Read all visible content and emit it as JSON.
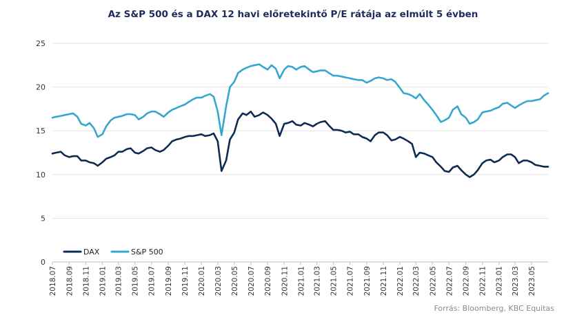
{
  "chart_data": {
    "type": "line",
    "title": "Az S&P 500 és a DAX 12 havi előretekintő P/E rátája az elmúlt  5 évben",
    "source": "Forrás: Bloomberg, KBC Equitas",
    "xlabel": "",
    "ylabel": "",
    "ylim": [
      0,
      25
    ],
    "yticks": [
      "0",
      "5",
      "10",
      "15",
      "20",
      "25"
    ],
    "xticks": [
      "2018.07",
      "2018.09",
      "2018.11",
      "2019.01",
      "2019.03",
      "2019.05",
      "2019.07",
      "2019.09",
      "2019.11",
      "2020.01",
      "2020.03",
      "2020.05",
      "2020.07",
      "2020.09",
      "2020.11",
      "2021.01",
      "2021.03",
      "2021.05",
      "2021.07",
      "2021.09",
      "2021.11",
      "2022.01",
      "2022.03",
      "2022.05",
      "2022.07",
      "2022.09",
      "2022.11",
      "2023.01",
      "2023.03",
      "2023.05"
    ],
    "grid": "horizontal",
    "legend": "bottom-left",
    "colors": {
      "DAX": "#0d2b4e",
      "S&P 500": "#35a6cf"
    },
    "x": [
      "2018-07-01",
      "2018-07-15",
      "2018-08-01",
      "2018-08-15",
      "2018-09-01",
      "2018-09-15",
      "2018-10-01",
      "2018-10-15",
      "2018-11-01",
      "2018-11-15",
      "2018-12-01",
      "2018-12-15",
      "2019-01-01",
      "2019-01-15",
      "2019-02-01",
      "2019-02-15",
      "2019-03-01",
      "2019-03-15",
      "2019-04-01",
      "2019-04-15",
      "2019-05-01",
      "2019-05-15",
      "2019-06-01",
      "2019-06-15",
      "2019-07-01",
      "2019-07-15",
      "2019-08-01",
      "2019-08-15",
      "2019-09-01",
      "2019-09-15",
      "2019-10-01",
      "2019-10-15",
      "2019-11-01",
      "2019-11-15",
      "2019-12-01",
      "2019-12-15",
      "2020-01-01",
      "2020-01-15",
      "2020-02-01",
      "2020-02-15",
      "2020-03-01",
      "2020-03-15",
      "2020-04-01",
      "2020-04-15",
      "2020-05-01",
      "2020-05-15",
      "2020-06-01",
      "2020-06-15",
      "2020-07-01",
      "2020-07-15",
      "2020-08-01",
      "2020-08-15",
      "2020-09-01",
      "2020-09-15",
      "2020-10-01",
      "2020-10-15",
      "2020-11-01",
      "2020-11-15",
      "2020-12-01",
      "2020-12-15",
      "2021-01-01",
      "2021-01-15",
      "2021-02-01",
      "2021-02-15",
      "2021-03-01",
      "2021-03-15",
      "2021-04-01",
      "2021-04-15",
      "2021-05-01",
      "2021-05-15",
      "2021-06-01",
      "2021-06-15",
      "2021-07-01",
      "2021-07-15",
      "2021-08-01",
      "2021-08-15",
      "2021-09-01",
      "2021-09-15",
      "2021-10-01",
      "2021-10-15",
      "2021-11-01",
      "2021-11-15",
      "2021-12-01",
      "2021-12-15",
      "2022-01-01",
      "2022-01-15",
      "2022-02-01",
      "2022-02-15",
      "2022-03-01",
      "2022-03-15",
      "2022-04-01",
      "2022-04-15",
      "2022-05-01",
      "2022-05-15",
      "2022-06-01",
      "2022-06-15",
      "2022-07-01",
      "2022-07-15",
      "2022-08-01",
      "2022-08-15",
      "2022-09-01",
      "2022-09-15",
      "2022-10-01",
      "2022-10-15",
      "2022-11-01",
      "2022-11-15",
      "2022-12-01",
      "2022-12-15",
      "2023-01-01",
      "2023-01-15",
      "2023-02-01",
      "2023-02-15",
      "2023-03-01",
      "2023-03-15",
      "2023-04-01",
      "2023-04-15",
      "2023-05-01",
      "2023-05-15",
      "2023-06-01",
      "2023-06-15",
      "2023-07-01"
    ],
    "series": [
      {
        "name": "DAX",
        "values": [
          12.4,
          12.5,
          12.6,
          12.2,
          12.0,
          12.1,
          12.1,
          11.6,
          11.6,
          11.4,
          11.3,
          11.0,
          11.4,
          11.8,
          12.0,
          12.2,
          12.6,
          12.6,
          12.9,
          13.0,
          12.5,
          12.4,
          12.7,
          13.0,
          13.1,
          12.8,
          12.6,
          12.8,
          13.3,
          13.8,
          14.0,
          14.1,
          14.3,
          14.4,
          14.4,
          14.5,
          14.6,
          14.4,
          14.5,
          14.7,
          13.8,
          10.4,
          11.6,
          14.0,
          14.8,
          16.3,
          17.0,
          16.8,
          17.2,
          16.6,
          16.8,
          17.1,
          16.8,
          16.4,
          15.8,
          14.4,
          15.8,
          15.9,
          16.1,
          15.7,
          15.6,
          15.9,
          15.7,
          15.5,
          15.8,
          16.0,
          16.1,
          15.6,
          15.1,
          15.1,
          15.0,
          14.8,
          14.9,
          14.6,
          14.6,
          14.3,
          14.1,
          13.8,
          14.5,
          14.8,
          14.8,
          14.5,
          13.9,
          14.0,
          14.3,
          14.1,
          13.8,
          13.5,
          12.0,
          12.5,
          12.4,
          12.2,
          12.0,
          11.4,
          10.9,
          10.4,
          10.3,
          10.8,
          11.0,
          10.5,
          10.0,
          9.7,
          10.0,
          10.5,
          11.3,
          11.6,
          11.7,
          11.4,
          11.6,
          12.0,
          12.3,
          12.3,
          12.0,
          11.3,
          11.6,
          11.6,
          11.4,
          11.1,
          11.0,
          10.9,
          10.9
        ]
      },
      {
        "name": "S&P 500",
        "values": [
          16.5,
          16.6,
          16.7,
          16.8,
          16.9,
          17.0,
          16.6,
          15.8,
          15.6,
          15.9,
          15.3,
          14.3,
          14.6,
          15.5,
          16.2,
          16.5,
          16.6,
          16.7,
          16.9,
          16.9,
          16.8,
          16.3,
          16.6,
          17.0,
          17.2,
          17.2,
          16.9,
          16.6,
          17.1,
          17.4,
          17.6,
          17.8,
          18.0,
          18.3,
          18.6,
          18.8,
          18.8,
          19.0,
          19.2,
          18.9,
          17.2,
          14.5,
          17.8,
          20.0,
          20.6,
          21.6,
          22.0,
          22.2,
          22.4,
          22.5,
          22.6,
          22.3,
          22.0,
          22.5,
          22.1,
          21.0,
          22.0,
          22.4,
          22.3,
          22.0,
          22.3,
          22.4,
          22.0,
          21.7,
          21.8,
          21.9,
          21.9,
          21.6,
          21.3,
          21.3,
          21.2,
          21.1,
          21.0,
          20.9,
          20.8,
          20.8,
          20.5,
          20.7,
          21.0,
          21.1,
          21.0,
          20.8,
          20.9,
          20.6,
          19.9,
          19.3,
          19.2,
          19.0,
          18.7,
          19.2,
          18.5,
          18.0,
          17.4,
          16.8,
          16.0,
          16.2,
          16.5,
          17.4,
          17.8,
          16.9,
          16.5,
          15.8,
          16.0,
          16.3,
          17.1,
          17.2,
          17.3,
          17.5,
          17.7,
          18.1,
          18.2,
          17.9,
          17.6,
          17.9,
          18.2,
          18.4,
          18.4,
          18.5,
          18.6,
          19.0,
          19.3
        ]
      }
    ]
  }
}
